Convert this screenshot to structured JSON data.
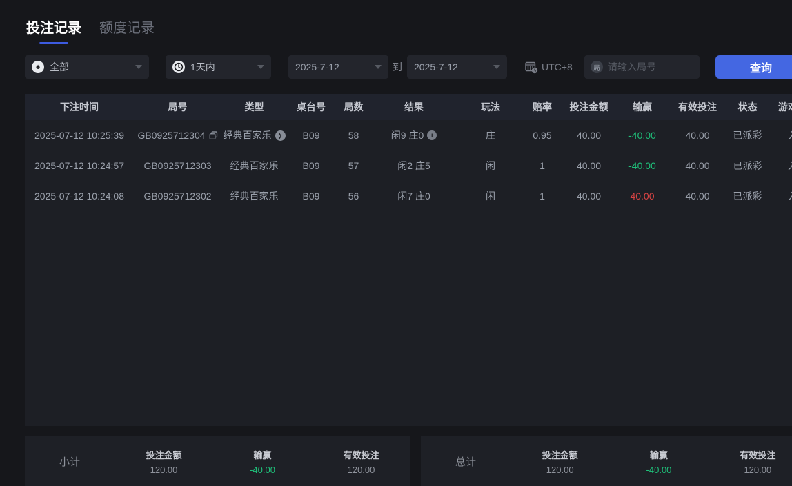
{
  "tabs": [
    {
      "label": "投注记录",
      "active": true
    },
    {
      "label": "额度记录",
      "active": false
    }
  ],
  "filters": {
    "game_type": {
      "value": "全部",
      "icon": "spade-icon",
      "icon_glyph": "♠"
    },
    "time_range": {
      "value": "1天内",
      "icon": "clock-icon"
    },
    "date_from": "2025-7-12",
    "to_label": "到",
    "date_to": "2025-7-12",
    "timezone": {
      "label": "UTC+8",
      "icon": "calendar-clock-icon"
    },
    "round_input": {
      "placeholder": "请输入局号",
      "icon": "round-id-icon",
      "icon_glyph": "局"
    },
    "search_button": "查询"
  },
  "table": {
    "columns": [
      "下注时间",
      "局号",
      "类型",
      "桌台号",
      "局数",
      "结果",
      "玩法",
      "赔率",
      "投注金额",
      "输赢",
      "有效投注",
      "状态",
      "游戏模式"
    ],
    "rows": [
      {
        "time": "2025-07-12 10:25:39",
        "round_id": "GB0925712304",
        "has_copy_icon": true,
        "game": "经典百家乐",
        "has_detail_icon": true,
        "table_no": "B09",
        "round_no": "58",
        "result": "闲9 庄0",
        "has_info_icon": true,
        "play": "庄",
        "odds": "0.95",
        "bet": "40.00",
        "win_loss": "-40.00",
        "win_loss_color": "green",
        "valid_bet": "40.00",
        "status": "已派彩",
        "mode": "入座"
      },
      {
        "time": "2025-07-12 10:24:57",
        "round_id": "GB0925712303",
        "has_copy_icon": false,
        "game": "经典百家乐",
        "has_detail_icon": false,
        "table_no": "B09",
        "round_no": "57",
        "result": "闲2 庄5",
        "has_info_icon": false,
        "play": "闲",
        "odds": "1",
        "bet": "40.00",
        "win_loss": "-40.00",
        "win_loss_color": "green",
        "valid_bet": "40.00",
        "status": "已派彩",
        "mode": "入座"
      },
      {
        "time": "2025-07-12 10:24:08",
        "round_id": "GB0925712302",
        "has_copy_icon": false,
        "game": "经典百家乐",
        "has_detail_icon": false,
        "table_no": "B09",
        "round_no": "56",
        "result": "闲7 庄0",
        "has_info_icon": false,
        "play": "闲",
        "odds": "1",
        "bet": "40.00",
        "win_loss": "40.00",
        "win_loss_color": "red",
        "valid_bet": "40.00",
        "status": "已派彩",
        "mode": "入座"
      }
    ]
  },
  "summary": {
    "subtotal": {
      "label": "小计",
      "items": [
        {
          "label": "投注金额",
          "value": "120.00",
          "color": "default"
        },
        {
          "label": "输赢",
          "value": "-40.00",
          "color": "green"
        },
        {
          "label": "有效投注",
          "value": "120.00",
          "color": "default"
        }
      ]
    },
    "total": {
      "label": "总计",
      "items": [
        {
          "label": "投注金额",
          "value": "120.00",
          "color": "default"
        },
        {
          "label": "输赢",
          "value": "-40.00",
          "color": "green"
        },
        {
          "label": "有效投注",
          "value": "120.00",
          "color": "default"
        }
      ]
    }
  },
  "colors": {
    "accent": "#4467e2",
    "green": "#1fc07a",
    "red": "#d94444",
    "tab_underline": "#3d5be0"
  }
}
